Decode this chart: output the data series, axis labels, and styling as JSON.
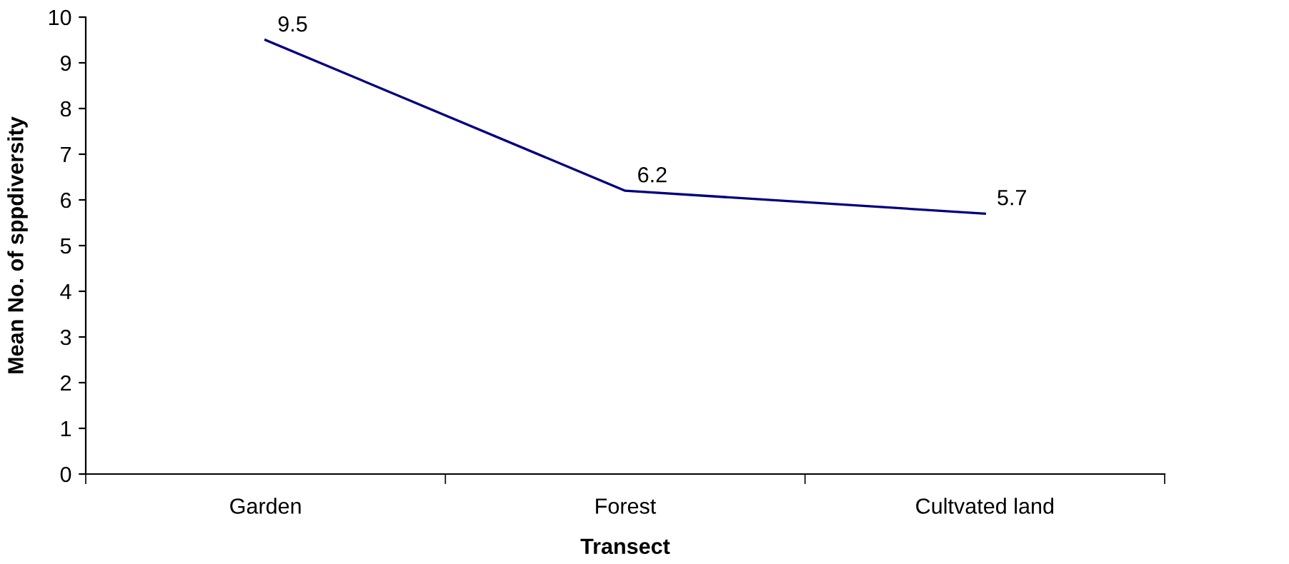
{
  "chart_data": {
    "type": "line",
    "xlabel": "Transect",
    "ylabel": "Mean No. of sppdiversity",
    "categories": [
      "Garden",
      "Forest",
      "Cultvated land"
    ],
    "series": [
      {
        "color": "#000080",
        "values": [
          9.5,
          6.2,
          5.7
        ]
      }
    ],
    "ylim": [
      0,
      10
    ],
    "yticks": [
      0,
      1,
      2,
      3,
      4,
      5,
      6,
      7,
      8,
      9,
      10
    ],
    "grid": false,
    "legend": false,
    "marker": "none",
    "line_style": "solid",
    "data_labels": true
  }
}
